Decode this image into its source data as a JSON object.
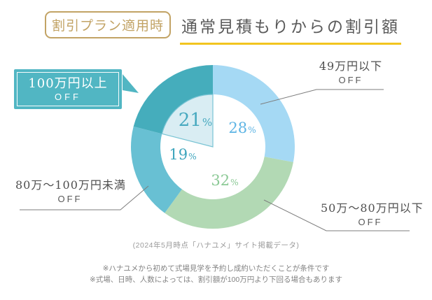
{
  "header": {
    "badge": "割引プラン適用時",
    "title": "通常見積もりからの割引額",
    "underline_color": "#f2c51f",
    "badge_color": "#c2a365"
  },
  "callout": {
    "line1": "100万円以上",
    "line2": "OFF",
    "box_color": "#51b6c3"
  },
  "chart_data": {
    "type": "pie",
    "donut": true,
    "title": "通常見積もりからの割引額",
    "start_angle": "top",
    "direction": "clockwise",
    "inner_radius_ratio": 0.64,
    "segments": [
      {
        "label": "49万円以下 OFF",
        "value": 28,
        "pct_text": "28",
        "unit": "%",
        "color": "#a5d9f4",
        "text_color": "#5db4e4"
      },
      {
        "label": "50万〜80万円以下 OFF",
        "value": 32,
        "pct_text": "32",
        "unit": "%",
        "color": "#b2d9b4",
        "text_color": "#8cc996"
      },
      {
        "label": "80万〜100万円未満 OFF",
        "value": 19,
        "pct_text": "19",
        "unit": "%",
        "color": "#68c0d3",
        "text_color": "#3fa6bd"
      },
      {
        "label": "100万円以上 OFF",
        "value": 21,
        "pct_text": "21",
        "unit": "%",
        "color": "#45adbc",
        "text_color": "#47a9bf",
        "highlighted": true
      }
    ],
    "highlight_wedge": {
      "fill": "#d9edf3",
      "stroke": "#79c4d4"
    },
    "leader_line_color": "#7d7d7d"
  },
  "labels": {
    "right_top": {
      "line1": "49万円以下",
      "line2": "OFF"
    },
    "right_bottom": {
      "line1": "50万〜80万円以下",
      "line2": "OFF"
    },
    "left": {
      "line1": "80万〜100万円未満",
      "line2": "OFF"
    }
  },
  "source": "(2024年5月時点「ハナユメ」サイト掲載データ)",
  "notes": [
    "※ハナユメから初めて式場見学を予約し成約いただくことが条件です",
    "※式場、日時、人数によっては、割引額が100万円より下回る場合もあります"
  ]
}
